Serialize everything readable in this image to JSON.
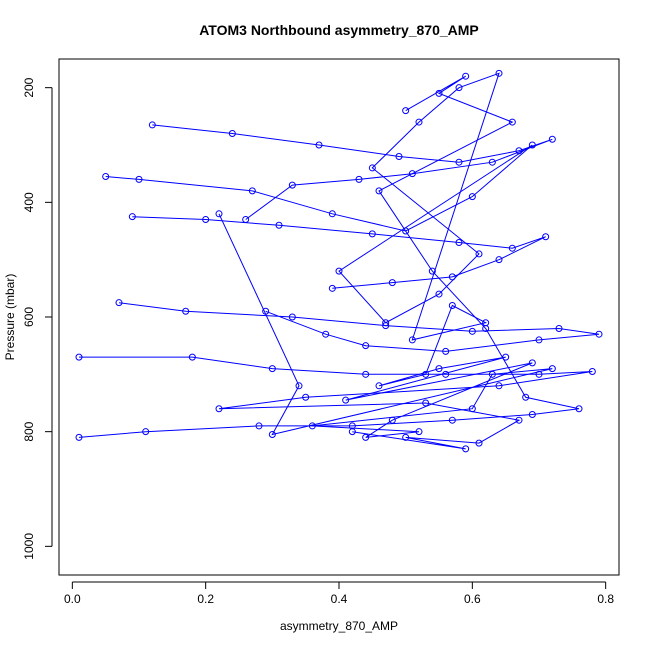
{
  "chart_data": {
    "type": "scatter",
    "title": "ATOM3 Northbound asymmetry_870_AMP",
    "xlabel": "asymmetry_870_AMP",
    "ylabel": "Pressure (mbar)",
    "xlim": [
      -0.02,
      0.82
    ],
    "ylim": [
      1050,
      150
    ],
    "y_reversed": true,
    "xticks": [
      0.0,
      0.2,
      0.4,
      0.6,
      0.8
    ],
    "xtick_labels": [
      "0.0",
      "0.2",
      "0.4",
      "0.6",
      "0.8"
    ],
    "yticks": [
      200,
      400,
      600,
      800,
      1000
    ],
    "ytick_labels": [
      "200",
      "400",
      "600",
      "800",
      "1000"
    ],
    "marker": "open-circle",
    "connected": true,
    "series_color": "#0000ff",
    "grid": false,
    "series": [
      {
        "x": [
          0.05,
          0.1,
          0.27,
          0.39,
          0.5,
          0.6,
          0.69,
          0.4,
          0.47,
          0.55,
          0.61,
          0.45,
          0.52,
          0.58,
          0.64,
          0.51,
          0.62,
          0.57,
          0.53,
          0.46,
          0.55,
          0.65,
          0.41,
          0.69,
          0.48,
          0.44,
          0.52,
          0.36,
          0.6,
          0.63,
          0.72,
          0.3,
          0.34,
          0.22
        ],
        "y": [
          355,
          360,
          380,
          420,
          450,
          390,
          300,
          520,
          610,
          560,
          490,
          340,
          260,
          200,
          175,
          640,
          610,
          580,
          700,
          720,
          690,
          670,
          745,
          680,
          780,
          810,
          800,
          790,
          760,
          700,
          690,
          805,
          720,
          420
        ]
      },
      {
        "x": [
          0.01,
          0.18,
          0.3,
          0.44,
          0.56,
          0.7,
          0.78,
          0.64,
          0.35,
          0.22,
          0.53,
          0.67,
          0.61,
          0.5,
          0.59,
          0.42
        ],
        "y": [
          670,
          670,
          690,
          700,
          700,
          700,
          695,
          720,
          740,
          760,
          750,
          780,
          820,
          810,
          830,
          800
        ]
      },
      {
        "x": [
          0.01,
          0.11,
          0.28,
          0.42,
          0.57,
          0.69,
          0.76,
          0.68,
          0.62,
          0.54,
          0.46,
          0.66,
          0.55,
          0.59,
          0.5
        ],
        "y": [
          810,
          800,
          790,
          790,
          780,
          770,
          760,
          740,
          620,
          520,
          380,
          260,
          210,
          180,
          240
        ]
      },
      {
        "x": [
          0.12,
          0.24,
          0.37,
          0.49,
          0.58,
          0.67,
          0.72,
          0.63,
          0.51,
          0.43,
          0.33,
          0.26
        ],
        "y": [
          265,
          280,
          300,
          320,
          330,
          310,
          290,
          330,
          350,
          360,
          370,
          430
        ]
      },
      {
        "x": [
          0.07,
          0.17,
          0.33,
          0.47,
          0.6,
          0.73,
          0.79,
          0.7,
          0.56,
          0.44,
          0.38,
          0.29
        ],
        "y": [
          575,
          590,
          600,
          615,
          625,
          620,
          630,
          640,
          660,
          650,
          630,
          590
        ]
      },
      {
        "x": [
          0.09,
          0.2,
          0.31,
          0.45,
          0.58,
          0.66,
          0.71,
          0.64,
          0.57,
          0.48,
          0.39
        ],
        "y": [
          425,
          430,
          440,
          455,
          470,
          480,
          460,
          500,
          530,
          540,
          550
        ]
      }
    ]
  }
}
